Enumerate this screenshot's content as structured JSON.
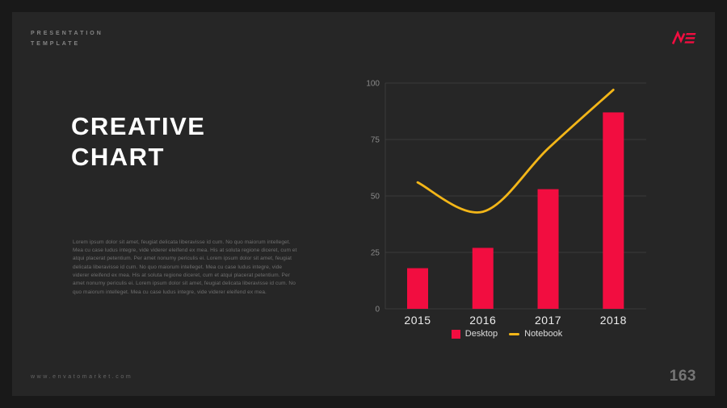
{
  "page": {
    "kicker_line1": "PRESENTATION",
    "kicker_line2": "TEMPLATE",
    "logo_text": "ME",
    "title_line1": "CREATIVE",
    "title_line2": "CHART",
    "body_text": "Lorem ipsum dolor sit amet, feugiat delicata liberavisse id cum. No quo maiorum intelleget. Mea cu case ludus integre, vide viderer eleifend ex mea. His at soluta regione diceret, cum et atqui placerat petentium. Per amet nonumy periculis ei. Lorem ipsum dolor sit amet, feugiat delicata liberavisse id cum. No quo maiorum intelleget. Mea cu case ludus integre, vide viderer eleifend ex mea. His at soluta regione diceret, cum et atqui placerat petentium. Per amet nonumy periculis ei. Lorem ipsum dolor sit amet, feugiat delicata liberavisse id cum. No quo maiorum intelleget. Mea cu case ludus integre, vide viderer eleifend ex mea.",
    "footer_url": "www.envatomarket.com",
    "page_number": "163"
  },
  "colors": {
    "background": "#191919",
    "panel": "#262626",
    "accent_red": "#f20d40",
    "accent_yellow": "#f3b618",
    "heading": "#ffffff",
    "muted_text": "#707070"
  },
  "chart_data": {
    "type": "combo",
    "categories": [
      "2015",
      "2016",
      "2017",
      "2018"
    ],
    "series": [
      {
        "name": "Desktop",
        "type": "bar",
        "color": "#f20d40",
        "values": [
          18,
          27,
          53,
          87
        ]
      },
      {
        "name": "Notebook",
        "type": "line",
        "color": "#f3b618",
        "values": [
          56,
          43,
          71,
          97
        ]
      }
    ],
    "title": "",
    "xlabel": "",
    "ylabel": "",
    "ylim": [
      0,
      100
    ],
    "yticks": [
      0,
      25,
      50,
      75,
      100
    ],
    "grid": true,
    "legend_position": "bottom"
  }
}
